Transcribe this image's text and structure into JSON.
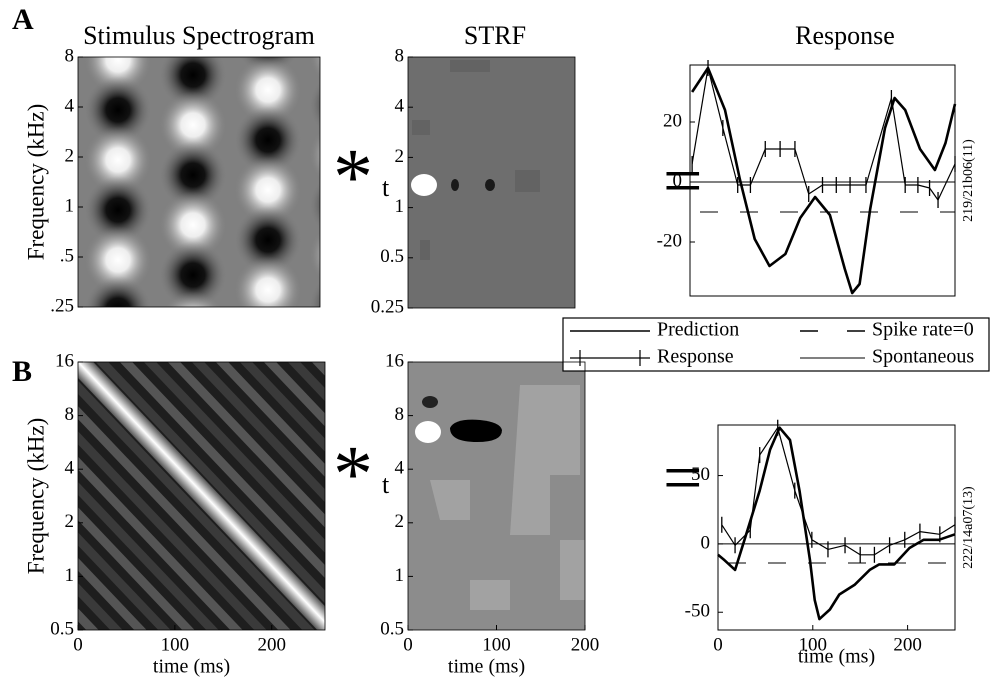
{
  "panel_labels": [
    "A",
    "B"
  ],
  "operator": {
    "symbol": "*",
    "subscript": "t",
    "equals": "="
  },
  "chart_data": [
    {
      "type": "image",
      "title": "Stimulus Spectrogram",
      "ylabel": "Frequency (kHz)",
      "log_y": true,
      "ylim": [
        0.25,
        8
      ],
      "yticks": [
        {
          "value": 0.25,
          "label": ".25"
        },
        {
          "value": 0.5,
          "label": ".5"
        },
        1,
        2,
        4,
        8
      ],
      "pattern": "ripple"
    },
    {
      "type": "image",
      "title": "STRF",
      "log_y": true,
      "ylim": [
        0.25,
        8
      ],
      "yticks": [
        0.25,
        0.5,
        1,
        2,
        4,
        8
      ],
      "pattern": "strf-a"
    },
    {
      "type": "line",
      "title": "Response",
      "id": "219/21b06(11)",
      "xlim": [
        0,
        250
      ],
      "ylim": [
        -38,
        39
      ],
      "yticks": [
        -20,
        0,
        20
      ],
      "series": [
        {
          "name": "Prediction",
          "color": "#000",
          "width": 2.6,
          "x": [
            2,
            17,
            33,
            47,
            61,
            75,
            90,
            104,
            118,
            132,
            146,
            153,
            160,
            170,
            184,
            193,
            203,
            217,
            231,
            241,
            250
          ],
          "values": [
            30,
            38,
            24,
            1,
            -19,
            -28,
            -24,
            -12,
            -5,
            -11,
            -29,
            -37,
            -34,
            -9,
            18,
            28,
            24,
            11,
            4,
            13,
            26
          ]
        },
        {
          "name": "Response",
          "color": "#000",
          "width": 1.2,
          "marker": "+",
          "x": [
            2,
            17,
            31,
            45,
            57,
            71,
            85,
            99,
            112,
            125,
            138,
            151,
            166,
            190,
            203,
            215,
            226,
            234,
            250
          ],
          "values": [
            6,
            38,
            18,
            -1,
            -1,
            11,
            11,
            11,
            -4,
            -1,
            -1,
            -1,
            -1,
            28,
            -1,
            -1,
            -2,
            -6,
            6
          ]
        }
      ],
      "hlines": [
        {
          "name": "Spike rate=0",
          "value": -10,
          "style": "dashed"
        },
        {
          "name": "Spontaneous",
          "value": 0,
          "style": "solid"
        }
      ]
    },
    {
      "type": "image",
      "ylabel": "Frequency (kHz)",
      "xlabel": "time (ms)",
      "log_y": true,
      "ylim": [
        0.5,
        16
      ],
      "yticks": [
        0.5,
        1,
        2,
        4,
        8,
        16
      ],
      "xlim": [
        0,
        255
      ],
      "xticks": [
        0,
        100,
        200
      ],
      "pattern": "sweep"
    },
    {
      "type": "image",
      "xlabel": "time (ms)",
      "log_y": true,
      "ylim": [
        0.5,
        16
      ],
      "yticks": [
        0.5,
        1,
        2,
        4,
        8,
        16
      ],
      "xlim": [
        0,
        200
      ],
      "xticks": [
        0,
        100,
        200
      ],
      "pattern": "strf-b"
    },
    {
      "type": "line",
      "id": "222/14a07(13)",
      "xlabel": "time (ms)",
      "xlim": [
        0,
        250
      ],
      "ylim": [
        -63,
        87
      ],
      "yticks": [
        -50,
        0,
        50
      ],
      "xticks": [
        0,
        100,
        200
      ],
      "series": [
        {
          "name": "Prediction",
          "color": "#000",
          "width": 2.6,
          "x": [
            0,
            7,
            18,
            28,
            44,
            55,
            65,
            76,
            86,
            97,
            102,
            107,
            118,
            128,
            144,
            160,
            170,
            186,
            202,
            217,
            233,
            250
          ],
          "values": [
            -8,
            -12,
            -19,
            3,
            39,
            69,
            85,
            76,
            39,
            -12,
            -41,
            -55,
            -48,
            -37,
            -30,
            -19,
            -15,
            -15,
            -3,
            3,
            3,
            7
          ]
        },
        {
          "name": "Response",
          "color": "#000",
          "width": 1.2,
          "marker": "+",
          "x": [
            4,
            18,
            34,
            44,
            63,
            81,
            99,
            116,
            134,
            150,
            165,
            181,
            197,
            213,
            234,
            250
          ],
          "values": [
            14,
            -1,
            10,
            65,
            85,
            39,
            3,
            -4,
            -1,
            -8,
            -8,
            -1,
            3,
            9,
            7,
            14
          ]
        }
      ],
      "hlines": [
        {
          "name": "Spike rate=0",
          "value": -14,
          "style": "dashed"
        },
        {
          "name": "Spontaneous",
          "value": 0,
          "style": "solid"
        }
      ]
    }
  ]
}
